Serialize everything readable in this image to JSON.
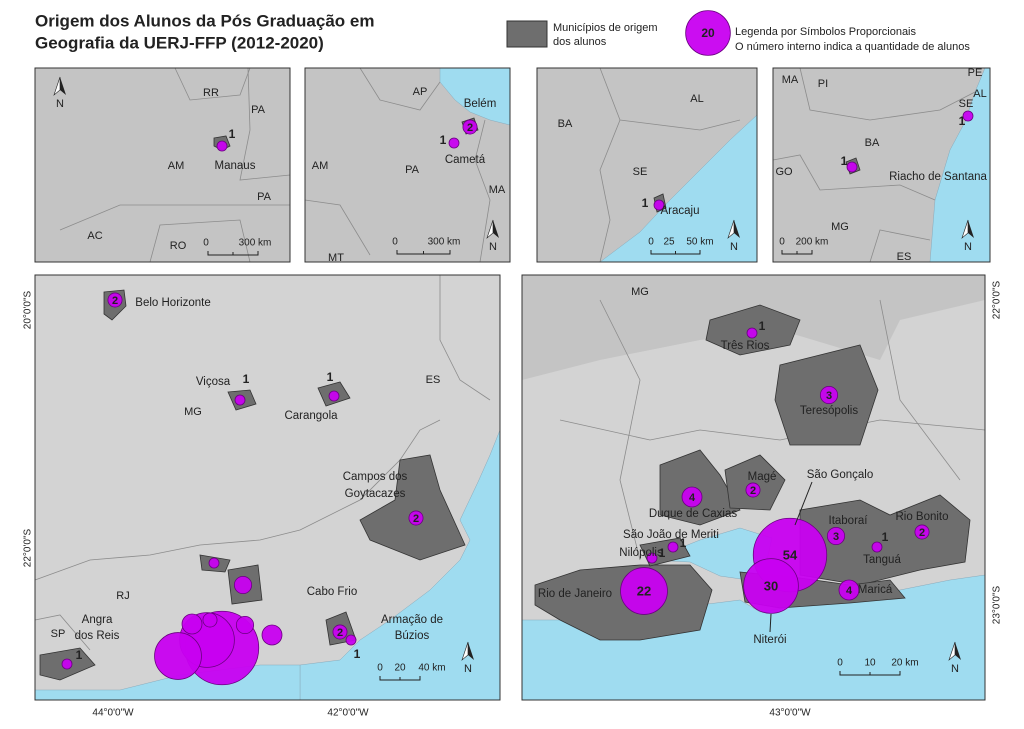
{
  "title": [
    "Origem dos Alunos da Pós Graduação em",
    "Geografia da UERJ-FFP (2012-2020)"
  ],
  "legend": {
    "municipios": [
      "Municípios de origem",
      "dos alunos"
    ],
    "symbol": {
      "value": 20
    },
    "symbol_text": [
      "Legenda por Símbolos Proporcionais",
      "O número interno indica a quantidade de alunos"
    ]
  },
  "north": "N",
  "insets": [
    {
      "regions": [
        "RR",
        "PA",
        "AM",
        "PA",
        "AC",
        "RO"
      ],
      "places": [
        {
          "name": [
            "Manaus"
          ],
          "count": 1
        }
      ],
      "scale": [
        "0",
        "300 km"
      ]
    },
    {
      "regions": [
        "AP",
        "AM",
        "PA",
        "MA",
        "MT"
      ],
      "places": [
        {
          "name": [
            "Belém"
          ],
          "count": 2
        },
        {
          "name": [
            "Cametá"
          ],
          "count": 1
        }
      ],
      "scale": [
        "0",
        "300 km"
      ]
    },
    {
      "regions": [
        "AL",
        "BA",
        "SE"
      ],
      "places": [
        {
          "name": [
            "Aracaju"
          ],
          "count": 1
        }
      ],
      "scale": [
        "0",
        "25",
        "50 km"
      ]
    },
    {
      "regions": [
        "MA",
        "PE",
        "PI",
        "AL",
        "SE",
        "BA",
        "GO",
        "MG",
        "ES"
      ],
      "places": [
        {
          "name": [
            "Riacho de Santana"
          ],
          "count": 1
        },
        {
          "count": 1
        }
      ],
      "scale": [
        "0",
        "200 km"
      ]
    }
  ],
  "maps": [
    {
      "regions": [
        "MG",
        "ES",
        "RJ",
        "SP"
      ],
      "places": [
        {
          "name": [
            "Angra",
            "dos Reis"
          ],
          "count": 1
        },
        {
          "name": [
            "Belo Horizonte"
          ],
          "count": 2
        },
        {
          "name": [
            "Viçosa"
          ],
          "count": 1
        },
        {
          "name": [
            "Carangola"
          ],
          "count": 1
        },
        {
          "name": [
            "Campos dos",
            "Goytacazes"
          ],
          "count": 2
        },
        {
          "name": [
            "Cabo Frio"
          ],
          "count": 2
        },
        {
          "name": [
            "Armação de",
            "Búzios"
          ],
          "count": 1
        }
      ],
      "coords": [
        "20°0'0\"S",
        "22°0'0\"S",
        "44°0'0\"W",
        "42°0'0\"W"
      ],
      "scale": [
        "0",
        "20",
        "40 km"
      ]
    },
    {
      "regions": [
        "MG"
      ],
      "places": [
        {
          "name": [
            "Três Rios"
          ],
          "count": 1
        },
        {
          "name": [
            "Teresópolis"
          ],
          "count": 3
        },
        {
          "name": [
            "Magé"
          ],
          "count": 2
        },
        {
          "name": [
            "Duque de Caxias"
          ],
          "count": 4
        },
        {
          "name": [
            "São Gonçalo"
          ],
          "count": 54
        },
        {
          "name": [
            "Itaboraí"
          ],
          "count": 3
        },
        {
          "name": [
            "Rio Bonito"
          ],
          "count": 2
        },
        {
          "name": [
            "Tanguá"
          ],
          "count": 1
        },
        {
          "name": [
            "São João de Meriti"
          ],
          "count": 1
        },
        {
          "name": [
            "Nilópolis"
          ],
          "count": 1
        },
        {
          "name": [
            "Rio de Janeiro"
          ],
          "count": 22
        },
        {
          "name": [
            "Niterói"
          ],
          "count": 30
        },
        {
          "name": [
            "Maricá"
          ],
          "count": 4
        }
      ],
      "coords": [
        "22°0'0\"S",
        "23°0'0\"S",
        "43°0'0\"W"
      ],
      "scale": [
        "0",
        "10",
        "20 km"
      ]
    }
  ]
}
